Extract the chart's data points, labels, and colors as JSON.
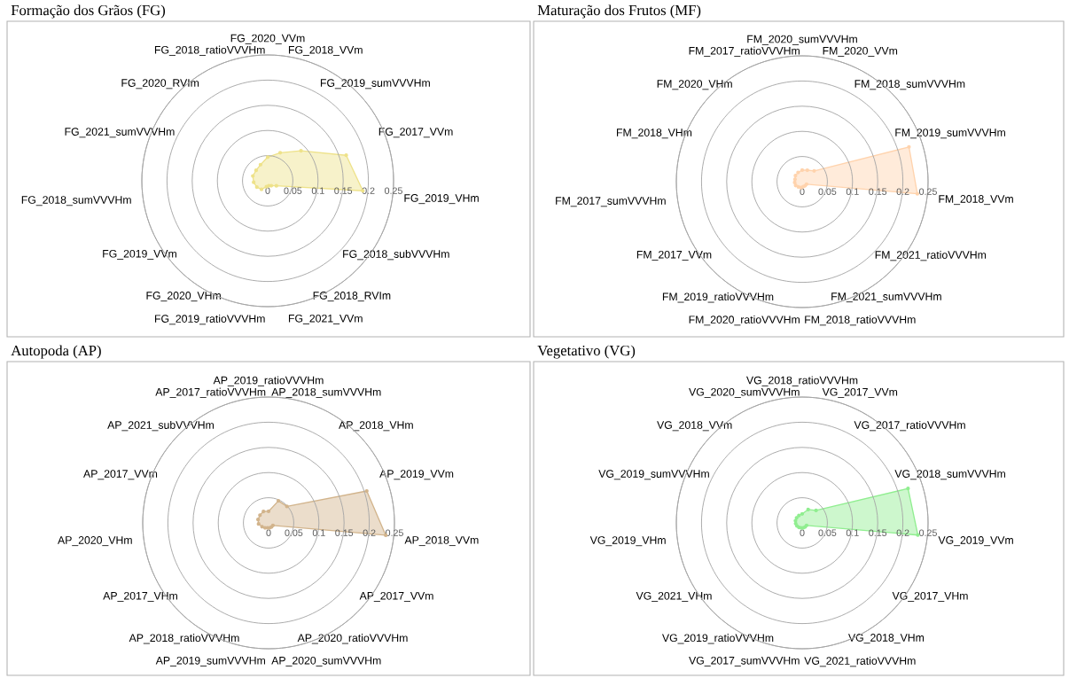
{
  "chart_data": [
    {
      "type": "radar",
      "title": "Formação dos Grãos (FG)",
      "categories": [
        "FG_2020_VVm",
        "FG_2018_VVm",
        "FG_2019_sumVVVHm",
        "FG_2017_VVm",
        "FG_2019_VHm",
        "FG_2018_subVVVHm",
        "FG_2018_RVIm",
        "FG_2021_VVm",
        "FG_2019_ratioVVVHm",
        "FG_2020_VHm",
        "FG_2019_VVm",
        "FG_2018_sumVVVHm",
        "FG_2021_sumVVVHm",
        "FG_2020_RVIm",
        "FG_2018_ratioVVVHm"
      ],
      "series": [
        {
          "color": "#eee28a",
          "values": [
            0.047,
            0.061,
            0.089,
            0.164,
            0.19,
            0.02,
            0.012,
            0.01,
            0.012,
            0.021,
            0.025,
            0.028,
            0.031,
            0.031,
            0.035
          ]
        }
      ],
      "ylim": [
        0,
        0.25
      ],
      "yticks": [
        0,
        0.05,
        0.1,
        0.15,
        0.2,
        0.25
      ],
      "grid": "y",
      "marker": "circle"
    },
    {
      "type": "radar",
      "title": "Maturação dos Frutos (MF)",
      "categories": [
        "FM_2020_sumVVVHm",
        "FM_2020_VVm",
        "FM_2018_sumVVVHm",
        "FM_2019_sumVVVHm",
        "FM_2018_VVm",
        "FM_2021_ratioVVVHm",
        "FM_2021_sumVVVHm",
        "FM_2018_ratioVVVHm",
        "FM_2020_ratioVVVHm",
        "FM_2019_ratioVVVHm",
        "FM_2017_VVm",
        "FM_2017_sumVVVHm",
        "FM_2018_VHm",
        "FM_2020_VHm",
        "FM_2017_ratioVVVHm"
      ],
      "series": [
        {
          "color": "#ffd3ad",
          "values": [
            0.023,
            0.025,
            0.032,
            0.223,
            0.23,
            0.01,
            0.01,
            0.01,
            0.012,
            0.013,
            0.015,
            0.015,
            0.015,
            0.018,
            0.02
          ]
        }
      ],
      "ylim": [
        0,
        0.25
      ],
      "yticks": [
        0,
        0.05,
        0.1,
        0.15,
        0.2,
        0.25
      ],
      "grid": "y",
      "marker": "circle"
    },
    {
      "type": "radar",
      "title": "Autopoda (AP)",
      "categories": [
        "AP_2019_ratioVVVHm",
        "AP_2018_sumVVVHm",
        "AP_2018_VHm",
        "AP_2019_VVm",
        "AP_2018_VVm",
        "AP_2017_VVm",
        "AP_2020_ratioVVVHm",
        "AP_2020_sumVVVHm",
        "AP_2019_sumVVVHm",
        "AP_2018_ratioVVVHm",
        "AP_2017_VHm",
        "AP_2020_VHm",
        "AP_2017_VVm",
        "AP_2021_subVVVHm",
        "AP_2017_ratioVVVHm"
      ],
      "series": [
        {
          "color": "#d2b48c",
          "values": [
            0.023,
            0.048,
            0.049,
            0.205,
            0.234,
            0.01,
            0.01,
            0.01,
            0.01,
            0.012,
            0.015,
            0.02,
            0.022,
            0.023,
            0.025
          ]
        }
      ],
      "ylim": [
        0,
        0.25
      ],
      "yticks": [
        0,
        0.05,
        0.1,
        0.15,
        0.2,
        0.25
      ],
      "grid": "y",
      "marker": "circle"
    },
    {
      "type": "radar",
      "title": "Vegetativo (VG)",
      "categories": [
        "VG_2018_ratioVVVHm",
        "VG_2017_VVm",
        "VG_2017_ratioVVVHm",
        "VG_2018_sumVVVHm",
        "VG_2019_VVm",
        "VG_2017_VHm",
        "VG_2018_VHm",
        "VG_2021_ratioVVVHm",
        "VG_2017_sumVVVHm",
        "VG_2019_ratioVVVHm",
        "VG_2021_VHm",
        "VG_2019_VHm",
        "VG_2019_sumVVVHm",
        "VG_2018_VVm",
        "VG_2020_sumVVVHm"
      ],
      "series": [
        {
          "color": "#90ee90",
          "values": [
            0.018,
            0.029,
            0.037,
            0.221,
            0.231,
            0.01,
            0.01,
            0.01,
            0.01,
            0.011,
            0.012,
            0.013,
            0.014,
            0.015,
            0.016
          ]
        }
      ],
      "ylim": [
        0,
        0.25
      ],
      "yticks": [
        0,
        0.05,
        0.1,
        0.15,
        0.2,
        0.25
      ],
      "grid": "y",
      "marker": "circle"
    }
  ]
}
